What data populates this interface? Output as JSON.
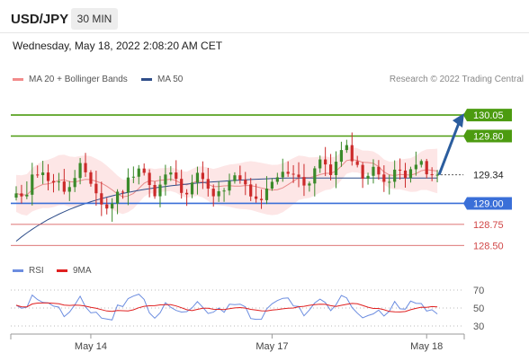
{
  "header": {
    "symbol": "USD/JPY",
    "timeframe": "30 MIN"
  },
  "timestamp": "Wednesday, May 18, 2022 2:08:20 AM CET",
  "legend": {
    "ma20_label": "MA 20 + Bollinger Bands",
    "ma50_label": "MA 50",
    "rsi_label": "RSI",
    "rsi_ma_label": "9MA",
    "credit": "Research © 2022 Trading Central"
  },
  "colors": {
    "resistance": "#4c9b10",
    "pivot": "#3a6fd8",
    "support": "#d14646",
    "bollinger_fill": "#fde6e6",
    "ma20": "#e88a8a",
    "ma50": "#2f4e8a",
    "bull": "#3b8a2a",
    "bear": "#cc2a2a",
    "rsi": "#6c8de0",
    "rsi_ma": "#e02020",
    "arrow": "#2b5d9e"
  },
  "chart_data": {
    "type": "candlestick",
    "ylim": [
      128.3,
      130.35
    ],
    "levels": [
      {
        "value": 130.05,
        "label": "130.05",
        "kind": "resistance"
      },
      {
        "value": 129.8,
        "label": "129.80",
        "kind": "resistance"
      },
      {
        "value": 129.34,
        "label": "129.34",
        "kind": "last"
      },
      {
        "value": 129.0,
        "label": "129.00",
        "kind": "pivot"
      },
      {
        "value": 128.75,
        "label": "128.75",
        "kind": "support"
      },
      {
        "value": 128.5,
        "label": "128.50",
        "kind": "support"
      }
    ],
    "x_ticks": [
      {
        "label": "May 14",
        "index": 14
      },
      {
        "label": "May 17",
        "index": 48
      },
      {
        "label": "May 18",
        "index": 77
      }
    ],
    "candle_count": 80,
    "close_path": [
      129.1,
      129.0,
      129.4,
      129.35,
      129.3,
      129.25,
      129.15,
      129.2,
      129.45,
      129.3,
      129.1,
      128.9,
      129.05,
      129.15,
      129.3,
      129.45,
      129.35,
      129.05,
      129.25,
      129.4,
      129.2,
      129.15,
      129.3,
      129.35,
      129.05,
      129.1,
      129.2,
      129.3,
      129.25,
      129.1,
      128.95,
      129.15,
      129.3,
      129.35,
      129.4,
      129.3,
      129.2,
      129.45,
      129.5,
      129.35,
      129.6,
      129.65,
      129.45,
      129.3,
      129.4,
      129.35,
      129.25,
      129.4,
      129.35,
      129.5,
      129.45,
      129.3,
      129.35
    ],
    "forecast_arrow": {
      "from": 129.34,
      "to": 130.05
    },
    "rsi": {
      "ylim": [
        25,
        75
      ],
      "ticks": [
        70,
        50,
        30
      ]
    }
  }
}
